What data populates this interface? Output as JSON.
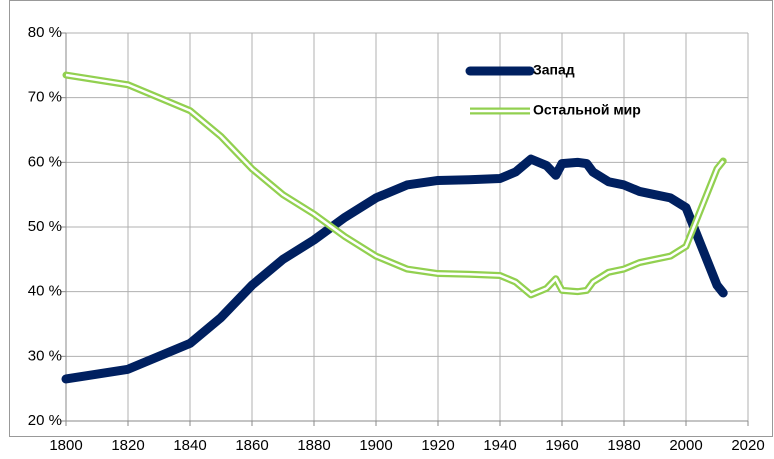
{
  "chart_data": {
    "type": "line",
    "x": [
      1800,
      1820,
      1840,
      1850,
      1860,
      1870,
      1880,
      1890,
      1900,
      1910,
      1920,
      1930,
      1940,
      1945,
      1950,
      1955,
      1958,
      1960,
      1965,
      1968,
      1970,
      1975,
      1980,
      1985,
      1990,
      1995,
      2000,
      2005,
      2010,
      2012
    ],
    "series": [
      {
        "name": "Запад",
        "color": "#002060",
        "style": "solid",
        "values": [
          26.5,
          28,
          32,
          36,
          41,
          45,
          48,
          51.5,
          54.5,
          56.5,
          57.2,
          57.3,
          57.5,
          58.5,
          60.5,
          59.5,
          58,
          59.8,
          60,
          59.8,
          58.5,
          57,
          56.5,
          55.5,
          55,
          54.5,
          53,
          47,
          41,
          39.8
        ]
      },
      {
        "name": "Остальной мир",
        "color": "#92d050",
        "style": "double",
        "values": [
          73.5,
          72,
          68,
          64,
          59,
          55,
          52,
          48.5,
          45.5,
          43.5,
          42.8,
          42.7,
          42.5,
          41.5,
          39.5,
          40.5,
          42,
          40.2,
          40,
          40.2,
          41.5,
          43,
          43.5,
          44.5,
          45,
          45.5,
          47,
          53,
          59,
          60.2
        ]
      }
    ],
    "xlim": [
      1800,
      2020
    ],
    "xticks": [
      1800,
      1820,
      1840,
      1860,
      1880,
      1900,
      1920,
      1940,
      1960,
      1980,
      2000,
      2020
    ],
    "ylim": [
      20,
      80
    ],
    "yticks": [
      {
        "value": 20,
        "label": "20 %"
      },
      {
        "value": 30,
        "label": "30 %"
      },
      {
        "value": 40,
        "label": "40 %"
      },
      {
        "value": 50,
        "label": "50 %"
      },
      {
        "value": 60,
        "label": "60 %"
      },
      {
        "value": 70,
        "label": "70 %"
      },
      {
        "value": 80,
        "label": "80 %"
      }
    ],
    "grid": true,
    "legend": "upper right"
  }
}
